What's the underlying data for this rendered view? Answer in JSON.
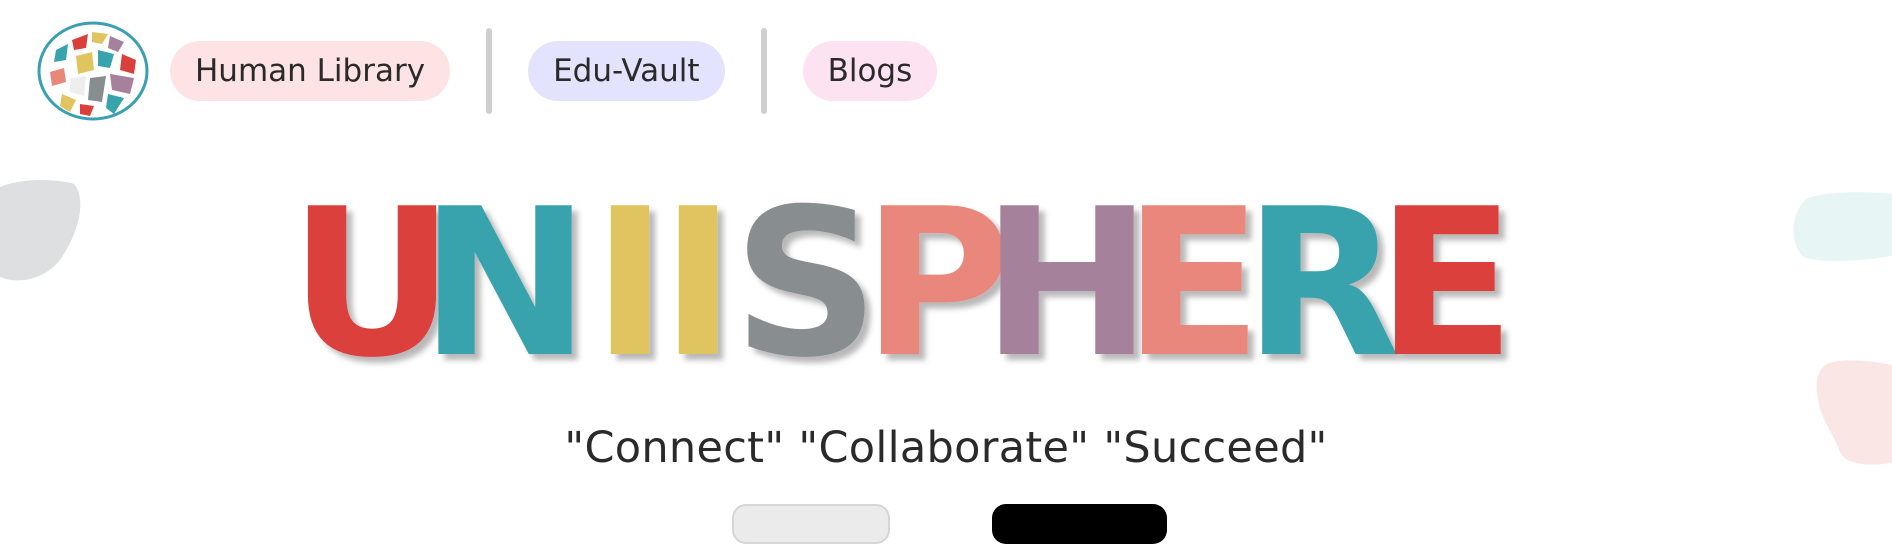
{
  "nav": {
    "logo_icon": "colorful-mosaic-globe-logo",
    "items": [
      {
        "label": "Human Library",
        "bg": "#fde3e3"
      },
      {
        "label": "Edu-Vault",
        "bg": "#e4e3fd"
      },
      {
        "label": "Blogs",
        "bg": "#fde3f2"
      }
    ]
  },
  "hero": {
    "letters": [
      {
        "char": "U",
        "color": "#db3f3c"
      },
      {
        "char": "N",
        "color": "#37a3ac"
      },
      {
        "char": "I",
        "color": "#dfc45f"
      },
      {
        "char": "I",
        "color": "#dfc45f"
      },
      {
        "char": "S",
        "color": "#888d90"
      },
      {
        "char": "P",
        "color": "#ea877b"
      },
      {
        "char": "H",
        "color": "#a6819c"
      },
      {
        "char": "E",
        "color": "#ea877b"
      },
      {
        "char": "R",
        "color": "#37a3ac"
      },
      {
        "char": "E",
        "color": "#db3f3c"
      }
    ],
    "tagline": "\"Connect\" \"Collaborate\" \"Succeed\""
  },
  "buttons": {
    "secondary_label": "",
    "primary_label": ""
  },
  "colors": {
    "background": "#ffffff",
    "blob_gray": "#dedfe0",
    "blob_teal": "#e7f5f5",
    "blob_pink": "#fbe6e6"
  }
}
